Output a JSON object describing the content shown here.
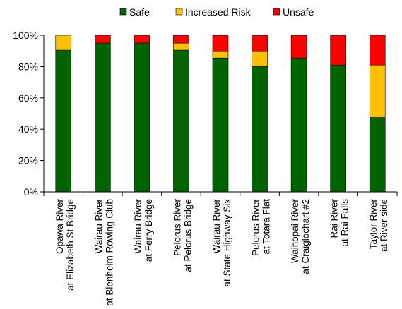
{
  "chart_data": {
    "type": "bar",
    "stacked": true,
    "percent": true,
    "categories": [
      [
        "Opawa River",
        "at Elizabeth St Bridge"
      ],
      [
        "Wairau River",
        "at Blenheim Rowing Club"
      ],
      [
        "Wairau River",
        "at Ferry Bridge"
      ],
      [
        "Pelorus River",
        "at Pelorus Bridge"
      ],
      [
        "Wairau River",
        "at State Highway Six"
      ],
      [
        "Pelorus River",
        "at Totara Flat"
      ],
      [
        "Waihopai River",
        "at Craiglochart #2"
      ],
      [
        "Rai River",
        "at Rai Falls"
      ],
      [
        "Taylor River",
        "at River side"
      ]
    ],
    "series": [
      {
        "name": "Safe",
        "color": "#006400",
        "values": [
          90.5,
          95,
          95,
          90.5,
          85.5,
          80,
          85.5,
          81,
          47.5
        ]
      },
      {
        "name": "Increased Risk",
        "color": "#FFC000",
        "values": [
          9.5,
          0,
          0,
          4.5,
          4.5,
          10,
          0,
          0,
          33.5
        ]
      },
      {
        "name": "Unsafe",
        "color": "#FF0000",
        "values": [
          0,
          5,
          5,
          5,
          10,
          10,
          14.5,
          19,
          19
        ]
      }
    ],
    "ylim": [
      0,
      100
    ],
    "yticks": [
      "0%",
      "20%",
      "40%",
      "60%",
      "80%",
      "100%"
    ],
    "ytick_values": [
      0,
      20,
      40,
      60,
      80,
      100
    ],
    "legend_position": "top",
    "grid": false
  }
}
